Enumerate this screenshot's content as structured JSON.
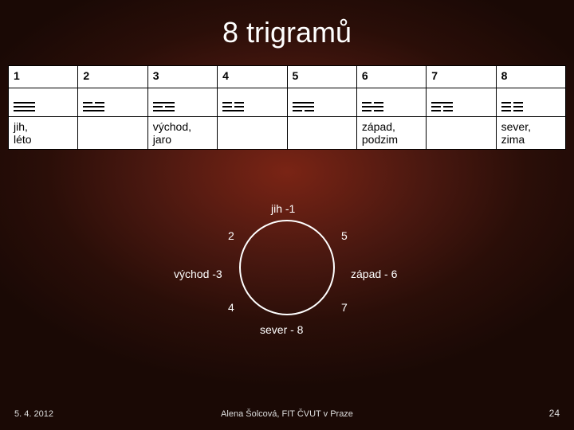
{
  "title": "8 trigramů",
  "columns": [
    "1",
    "2",
    "3",
    "4",
    "5",
    "6",
    "7",
    "8"
  ],
  "trigrams": [
    [
      1,
      1,
      1
    ],
    [
      0,
      1,
      1
    ],
    [
      1,
      0,
      1
    ],
    [
      0,
      0,
      1
    ],
    [
      1,
      1,
      0
    ],
    [
      0,
      1,
      0
    ],
    [
      1,
      0,
      0
    ],
    [
      0,
      0,
      0
    ]
  ],
  "row_labels": [
    "jih,\nléto",
    "",
    "východ,\njaro",
    "",
    "",
    "západ,\npodzim",
    "",
    "sever,\nzima"
  ],
  "diagram": {
    "top": "jih -1",
    "upper_left": "2",
    "upper_right": "5",
    "left": "východ -3",
    "right": "západ - 6",
    "lower_left": "4",
    "lower_right": "7",
    "bottom": "sever - 8"
  },
  "footer": {
    "date": "5. 4. 2012",
    "author": "Alena Šolcová, FIT ČVUT v Praze",
    "page": "24"
  },
  "colors": {
    "bg_center": "#7a2415",
    "bg_mid": "#4a1810",
    "bg_outer": "#1a0905",
    "text": "#ffffff",
    "table_bg": "#ffffff",
    "table_text": "#000000",
    "border": "#000000"
  },
  "fonts": {
    "title_size_pt": 27,
    "body_size_pt": 11,
    "footer_size_pt": 8
  }
}
